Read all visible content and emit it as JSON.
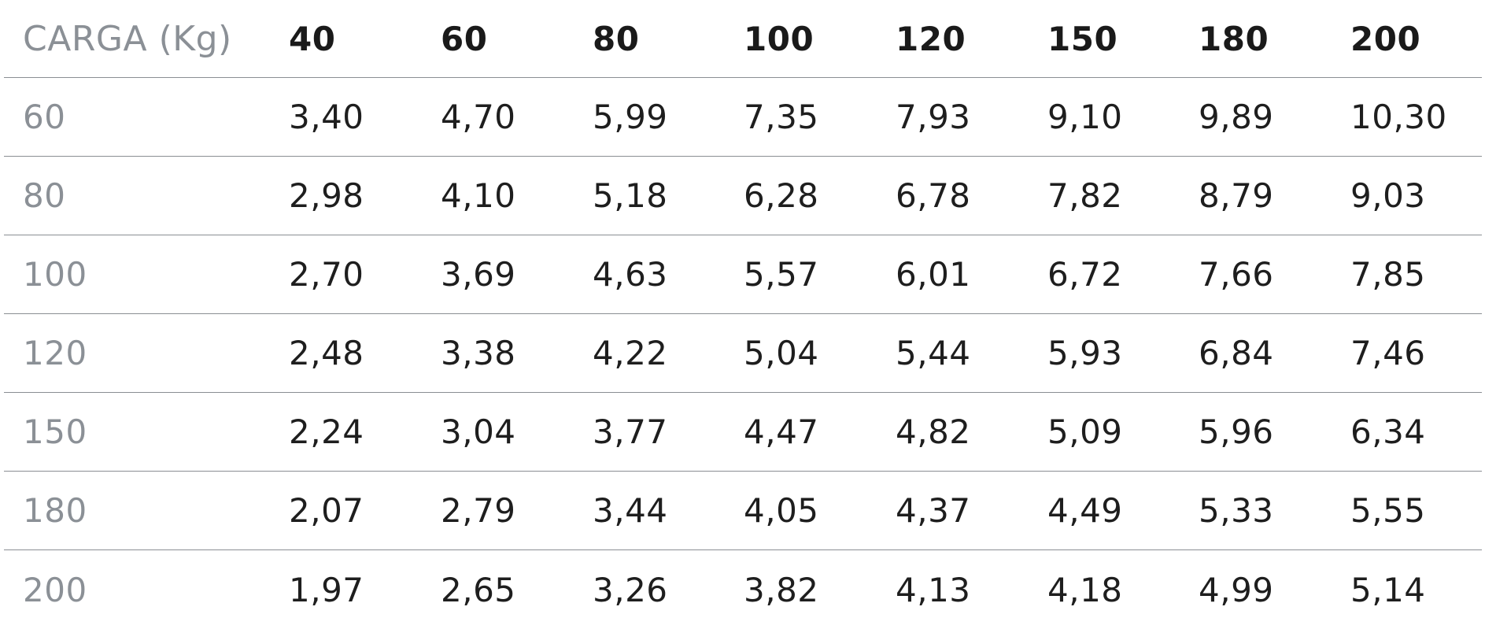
{
  "header": {
    "label": "CARGA (Kg)",
    "columns": [
      "40",
      "60",
      "80",
      "100",
      "120",
      "150",
      "180",
      "200"
    ]
  },
  "rows": [
    {
      "label": "60",
      "values": [
        "3,40",
        "4,70",
        "5,99",
        "7,35",
        "7,93",
        "9,10",
        "9,89",
        "10,30"
      ]
    },
    {
      "label": "80",
      "values": [
        "2,98",
        "4,10",
        "5,18",
        "6,28",
        "6,78",
        "7,82",
        "8,79",
        "9,03"
      ]
    },
    {
      "label": "100",
      "values": [
        "2,70",
        "3,69",
        "4,63",
        "5,57",
        "6,01",
        "6,72",
        "7,66",
        "7,85"
      ]
    },
    {
      "label": "120",
      "values": [
        "2,48",
        "3,38",
        "4,22",
        "5,04",
        "5,44",
        "5,93",
        "6,84",
        "7,46"
      ]
    },
    {
      "label": "150",
      "values": [
        "2,24",
        "3,04",
        "3,77",
        "4,47",
        "4,82",
        "5,09",
        "5,96",
        "6,34"
      ]
    },
    {
      "label": "180",
      "values": [
        "2,07",
        "2,79",
        "3,44",
        "4,05",
        "4,37",
        "4,49",
        "5,33",
        "5,55"
      ]
    },
    {
      "label": "200",
      "values": [
        "1,97",
        "2,65",
        "3,26",
        "3,82",
        "4,13",
        "4,18",
        "4,99",
        "5,14"
      ]
    }
  ]
}
